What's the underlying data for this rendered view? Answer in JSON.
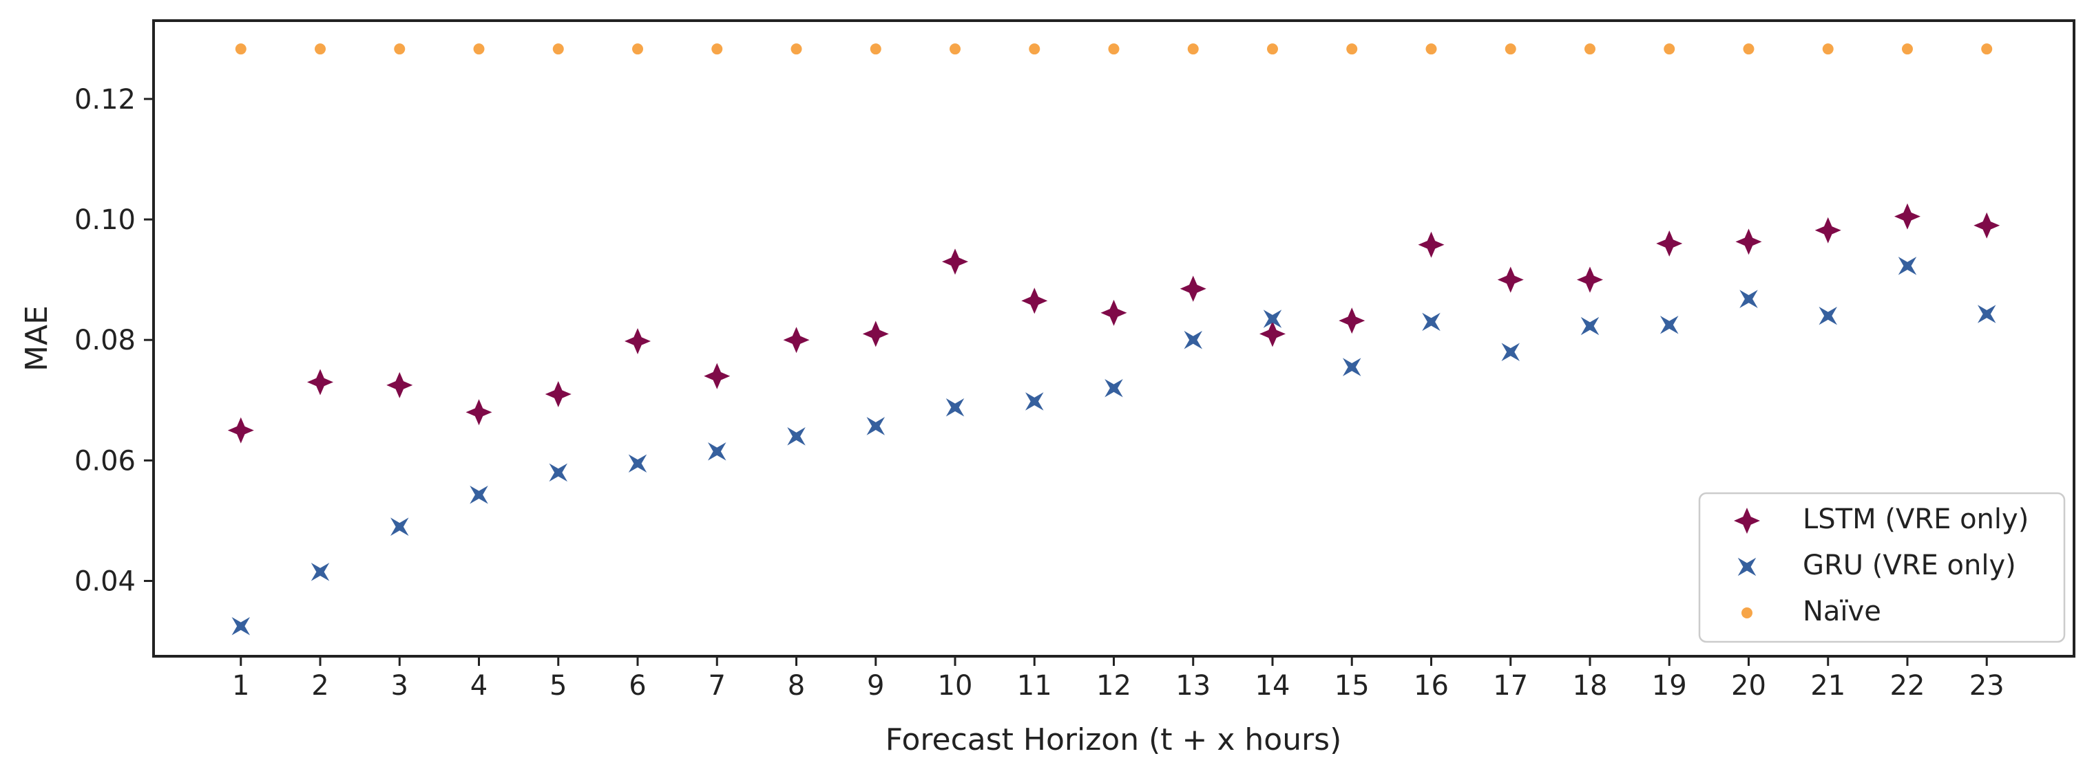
{
  "chart_data": {
    "type": "scatter",
    "xlabel": "Forecast Horizon (t + x hours)",
    "ylabel": "MAE",
    "x": [
      1,
      2,
      3,
      4,
      5,
      6,
      7,
      8,
      9,
      10,
      11,
      12,
      13,
      14,
      15,
      16,
      17,
      18,
      19,
      20,
      21,
      22,
      23
    ],
    "xlim": [
      -0.1,
      24.1
    ],
    "ylim": [
      0.0275,
      0.133
    ],
    "yticks": [
      0.04,
      0.06,
      0.08,
      0.1,
      0.12
    ],
    "ytick_labels": [
      "0.04",
      "0.06",
      "0.08",
      "0.10",
      "0.12"
    ],
    "xtick_labels": [
      "1",
      "2",
      "3",
      "4",
      "5",
      "6",
      "7",
      "8",
      "9",
      "10",
      "11",
      "12",
      "13",
      "14",
      "15",
      "16",
      "17",
      "18",
      "19",
      "20",
      "21",
      "22",
      "23"
    ],
    "grid": false,
    "legend_position": "bottom-right",
    "series": [
      {
        "name": "LSTM (VRE only)",
        "marker": "star4",
        "color": "#7f0a48",
        "values": [
          0.065,
          0.073,
          0.0725,
          0.068,
          0.071,
          0.0798,
          0.074,
          0.08,
          0.081,
          0.093,
          0.0865,
          0.0845,
          0.0885,
          0.081,
          0.0832,
          0.0958,
          0.09,
          0.09,
          0.096,
          0.0963,
          0.0982,
          0.1005,
          0.099
        ]
      },
      {
        "name": "GRU (VRE only)",
        "marker": "bowtie",
        "color": "#36609e",
        "values": [
          0.0325,
          0.0415,
          0.049,
          0.0543,
          0.058,
          0.0595,
          0.0615,
          0.064,
          0.0657,
          0.0688,
          0.0698,
          0.072,
          0.08,
          0.0835,
          0.0755,
          0.083,
          0.078,
          0.0823,
          0.0825,
          0.0868,
          0.084,
          0.0923,
          0.0843
        ]
      },
      {
        "name": "Naïve",
        "marker": "circle",
        "color": "#f7a548",
        "values": [
          0.1283,
          0.1283,
          0.1283,
          0.1283,
          0.1283,
          0.1283,
          0.1283,
          0.1283,
          0.1283,
          0.1283,
          0.1283,
          0.1283,
          0.1283,
          0.1283,
          0.1283,
          0.1283,
          0.1283,
          0.1283,
          0.1283,
          0.1283,
          0.1283,
          0.1283,
          0.1283
        ]
      }
    ]
  }
}
